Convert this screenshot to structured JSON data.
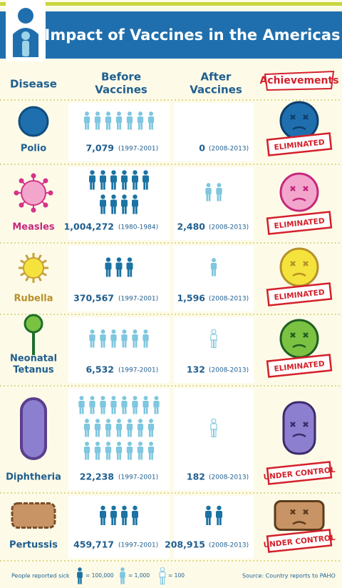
{
  "header": {
    "title": "Impact of Vaccines in the Americas"
  },
  "table": {
    "columns": [
      [
        "Disease"
      ],
      [
        "Before",
        "Vaccines"
      ],
      [
        "After",
        "Vaccines"
      ],
      [
        "Achievements"
      ]
    ],
    "rows": [
      {
        "disease": [
          "Polio"
        ],
        "before": "7,079",
        "before_period": "(1997-2001)",
        "after": "0",
        "after_period": "(2008-2013)",
        "status": "ELIMINATED"
      },
      {
        "disease": [
          "Measles"
        ],
        "before": "1,004,272",
        "before_period": "(1980-1984)",
        "after": "2,480",
        "after_period": "(2008-2013)",
        "status": "ELIMINATED"
      },
      {
        "disease": [
          "Rubella"
        ],
        "before": "370,567",
        "before_period": "(1997-2001)",
        "after": "1,596",
        "after_period": "(2008-2013)",
        "status": "ELIMINATED"
      },
      {
        "disease": [
          "Neonatal",
          "Tetanus"
        ],
        "before": "6,532",
        "before_period": "(1997-2001)",
        "after": "132",
        "after_period": "(2008-2013)",
        "status": "ELIMINATED"
      },
      {
        "disease": [
          "Diphtheria"
        ],
        "before": "22,238",
        "before_period": "(1997-2001)",
        "after": "182",
        "after_period": "(2008-2013)",
        "status": "UNDER CONTROL"
      },
      {
        "disease": [
          "Pertussis"
        ],
        "before": "459,717",
        "before_period": "(1997-2001)",
        "after": "208,915",
        "after_period": "(2008-2013)",
        "status": "UNDER CONTROL"
      }
    ]
  },
  "legend": {
    "label": "People reported sick",
    "items": [
      "= 100,000",
      "= 1,000",
      "= 100"
    ]
  },
  "source": "Source: Country reports to PAHO"
}
